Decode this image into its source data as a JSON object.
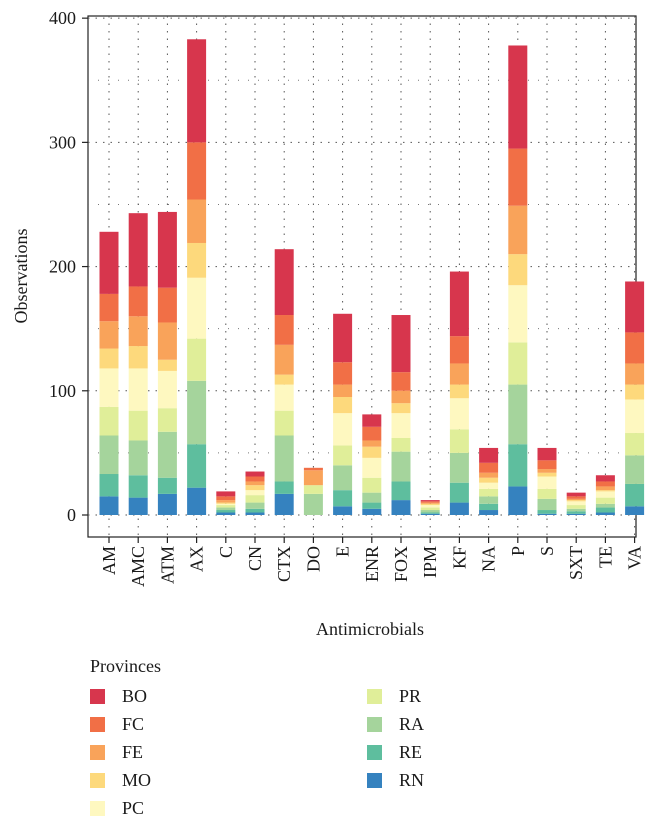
{
  "chart_data": {
    "type": "bar",
    "stacked": true,
    "xlabel": "Antimicrobials",
    "ylabel": "Observations",
    "ylim": [
      0,
      400
    ],
    "yticks": [
      0,
      100,
      200,
      300,
      400
    ],
    "grid": "dotted",
    "legend_position": "bottom",
    "legend_title": "Provinces",
    "categories": [
      "AM",
      "AMC",
      "ATM",
      "AX",
      "C",
      "CN",
      "CTX",
      "DO",
      "E",
      "ENR",
      "FOX",
      "IPM",
      "KF",
      "NA",
      "P",
      "S",
      "SXT",
      "TE",
      "VA"
    ],
    "series": [
      {
        "name": "RN",
        "color": "#3582bf",
        "values": [
          15,
          14,
          17,
          22,
          2,
          2,
          17,
          0,
          7,
          5,
          12,
          1,
          10,
          4,
          23,
          1,
          1,
          2,
          7
        ]
      },
      {
        "name": "RE",
        "color": "#5ebe9e",
        "values": [
          18,
          18,
          13,
          35,
          2,
          3,
          10,
          0,
          13,
          5,
          15,
          1,
          16,
          5,
          34,
          3,
          2,
          4,
          18
        ]
      },
      {
        "name": "RA",
        "color": "#a5d49c",
        "values": [
          31,
          28,
          37,
          51,
          2,
          5,
          37,
          17,
          20,
          8,
          24,
          2,
          24,
          6,
          48,
          9,
          2,
          3,
          23
        ]
      },
      {
        "name": "PR",
        "color": "#e0ee99",
        "values": [
          23,
          24,
          19,
          34,
          2,
          6,
          20,
          7,
          16,
          12,
          11,
          2,
          19,
          6,
          34,
          8,
          3,
          5,
          18
        ]
      },
      {
        "name": "PC",
        "color": "#fef8c0",
        "values": [
          31,
          34,
          30,
          49,
          1,
          4,
          21,
          0,
          26,
          16,
          20,
          2,
          25,
          5,
          46,
          10,
          3,
          5,
          27
        ]
      },
      {
        "name": "MO",
        "color": "#fdd97c",
        "values": [
          16,
          18,
          9,
          28,
          1,
          4,
          8,
          0,
          13,
          9,
          8,
          1,
          11,
          4,
          25,
          3,
          1,
          1,
          12
        ]
      },
      {
        "name": "FE",
        "color": "#f9a35a",
        "values": [
          22,
          24,
          30,
          35,
          2,
          3,
          24,
          12,
          10,
          5,
          10,
          1,
          17,
          4,
          39,
          3,
          1,
          3,
          17
        ]
      },
      {
        "name": "FC",
        "color": "#f16f46",
        "values": [
          22,
          24,
          28,
          46,
          3,
          4,
          24,
          2,
          18,
          11,
          15,
          1,
          22,
          8,
          46,
          7,
          2,
          4,
          25
        ]
      },
      {
        "name": "BO",
        "color": "#d7364d",
        "values": [
          50,
          59,
          61,
          83,
          4,
          4,
          53,
          0,
          39,
          10,
          46,
          1,
          52,
          12,
          83,
          10,
          3,
          5,
          41
        ]
      }
    ]
  }
}
